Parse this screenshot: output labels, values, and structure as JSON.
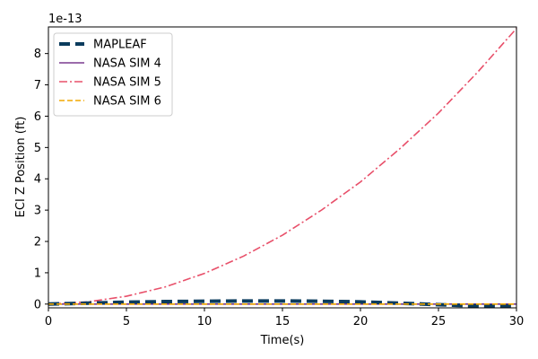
{
  "chart_data": {
    "type": "line",
    "xlabel": "Time(s)",
    "ylabel": "ECI Z Position (ft)",
    "offset_text": "1e-13",
    "xlim": [
      0,
      30
    ],
    "ylim": [
      -0.12,
      8.85
    ],
    "y_multiplier": 1e-13,
    "x_ticks": [
      0,
      5,
      10,
      15,
      20,
      25,
      30
    ],
    "y_ticks": [
      0,
      1,
      2,
      3,
      4,
      5,
      6,
      7,
      8
    ],
    "grid": false,
    "legend_position": "upper-left",
    "series": [
      {
        "name": "MAPLEAF",
        "color": "#0b3c5d",
        "style": "dashed-thick",
        "x": [
          0,
          2.5,
          5,
          7.5,
          10,
          12.5,
          15,
          17.5,
          20,
          22.5,
          25,
          27.5,
          30
        ],
        "y": [
          0.0,
          0.03,
          0.06,
          0.08,
          0.09,
          0.1,
          0.1,
          0.09,
          0.07,
          0.03,
          -0.02,
          -0.06,
          -0.07
        ]
      },
      {
        "name": "NASA SIM 4",
        "color": "#7a3b8f",
        "style": "solid",
        "x": [
          0,
          5,
          10,
          15,
          20,
          25,
          30
        ],
        "y": [
          0,
          0,
          0,
          0,
          0,
          0,
          0
        ]
      },
      {
        "name": "NASA SIM 5",
        "color": "#e8506a",
        "style": "dashdot",
        "x": [
          0,
          2.5,
          5,
          7.5,
          10,
          12.5,
          15,
          17.5,
          20,
          22.5,
          25,
          27.5,
          30
        ],
        "y": [
          0.0,
          0.07,
          0.25,
          0.55,
          0.98,
          1.53,
          2.2,
          3.0,
          3.9,
          4.95,
          6.1,
          7.4,
          8.8
        ]
      },
      {
        "name": "NASA SIM 6",
        "color": "#f2a900",
        "style": "dashed",
        "x": [
          0,
          5,
          10,
          15,
          20,
          25,
          30
        ],
        "y": [
          0,
          0,
          0,
          0,
          0,
          0,
          0
        ]
      }
    ]
  }
}
